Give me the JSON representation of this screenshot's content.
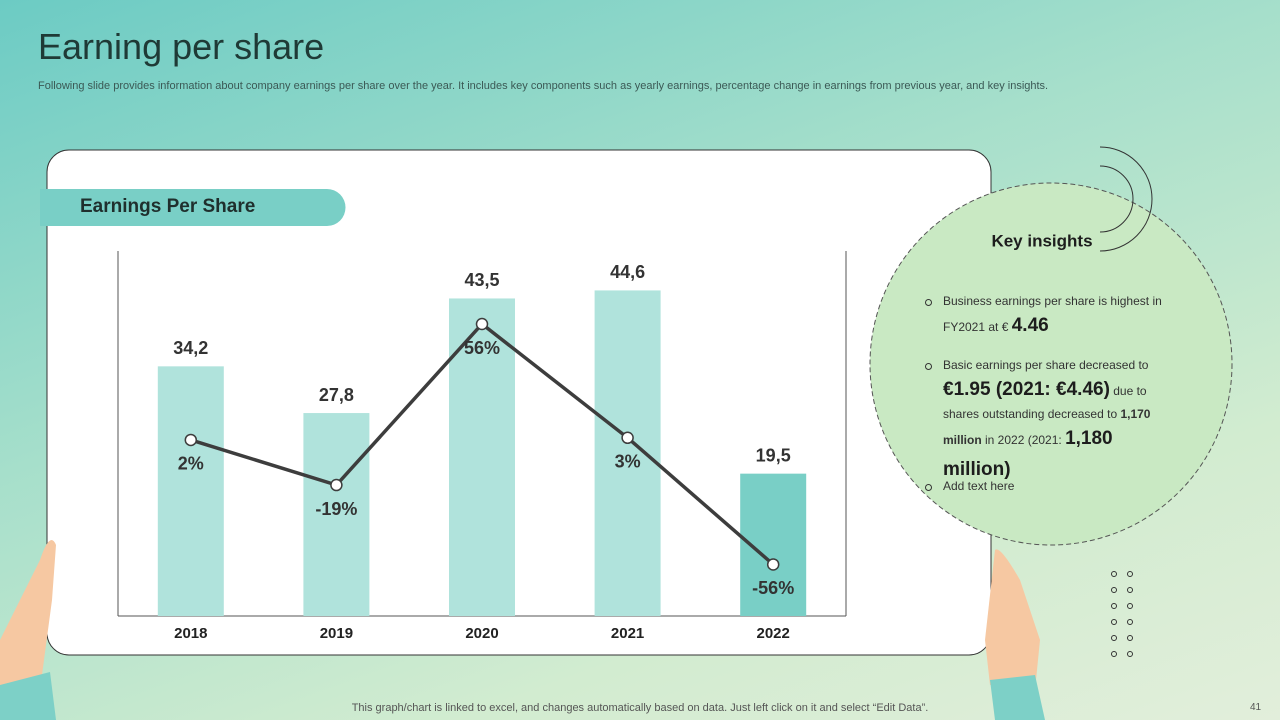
{
  "slide": {
    "title": "Earning per share",
    "subtitle": "Following slide provides information about company earnings per share over the year. It includes key components such as yearly earnings, percentage change in earnings from previous year, and key insights.",
    "panel_label": "Earnings Per Share",
    "insights_title": "Key insights",
    "insights": [
      [
        "Business earnings per share is highest in FY2021 at € ",
        "4.46"
      ],
      [
        "Basic earnings per share decreased to ",
        "€1.95 (2021: €4.46)",
        " due to shares outstanding decreased to ",
        "1,170 million",
        " in 2022 (2021: ",
        "1,180 million)"
      ],
      [
        "Add text here"
      ]
    ],
    "footer": "This graph/chart is linked to excel, and changes automatically based on data. Just left click on it and select “Edit Data”.",
    "page_number": "41"
  },
  "chart_data": {
    "type": "bar",
    "categories": [
      "2018",
      "2019",
      "2020",
      "2021",
      "2022"
    ],
    "ylim": [
      0,
      50
    ],
    "y2lim": [
      -80,
      90
    ],
    "series": [
      {
        "color": "#b0e3dc",
        "colors": [
          "#b0e3dc",
          "#b0e3dc",
          "#b0e3dc",
          "#b0e3dc",
          "#79cfc6"
        ],
        "values": [
          34.2,
          27.8,
          43.5,
          44.6,
          19.5
        ],
        "value_labels": [
          "34,2",
          "27,8",
          "43,5",
          "44,6",
          "19,5"
        ]
      },
      {
        "axis": "y2",
        "color": "#3d3d3d",
        "values": [
          2,
          -19,
          56,
          3,
          -56
        ],
        "value_labels": [
          "2%",
          "-19%",
          "56%",
          "3%",
          "-56%"
        ]
      }
    ]
  }
}
